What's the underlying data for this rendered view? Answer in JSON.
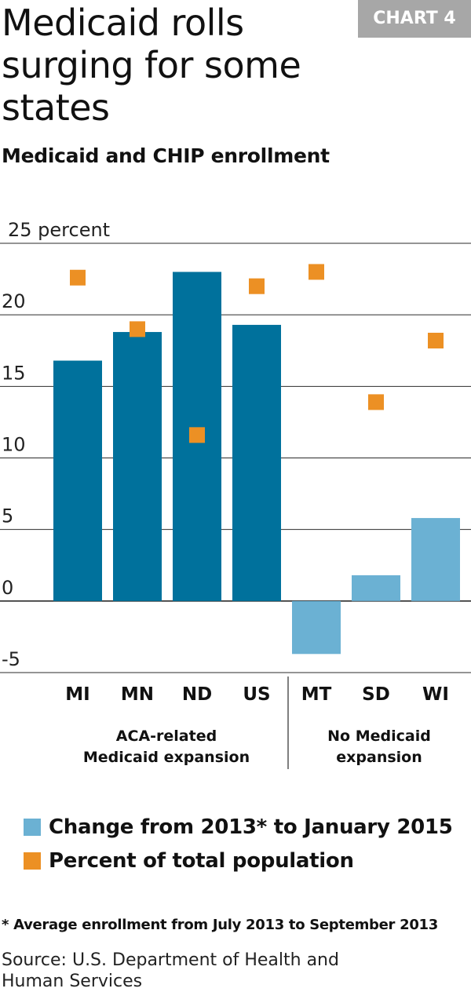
{
  "header": {
    "title": "Medicaid rolls surging for some states",
    "badge": "CHART 4",
    "subtitle": "Medicaid and CHIP enrollment"
  },
  "colors": {
    "expansion_bar": "#00719c",
    "no_expansion_bar": "#6bb1d3",
    "marker": "#ec9024",
    "grid": "#2b2b2b",
    "badge_bg": "#a7a7a7"
  },
  "chart_data": {
    "type": "bar",
    "title": "Medicaid and CHIP enrollment",
    "ylabel": "percent",
    "ylim": [
      -5,
      25
    ],
    "yticks": [
      {
        "value": 25,
        "label": "25 percent"
      },
      {
        "value": 20,
        "label": "20"
      },
      {
        "value": 15,
        "label": "15"
      },
      {
        "value": 10,
        "label": "10"
      },
      {
        "value": 5,
        "label": "5"
      },
      {
        "value": 0,
        "label": "0"
      },
      {
        "value": -5,
        "label": "-5"
      }
    ],
    "grid": true,
    "categories": [
      "MI",
      "MN",
      "ND",
      "US",
      "MT",
      "SD",
      "WI"
    ],
    "groups": [
      {
        "label_lines": [
          "ACA-related",
          "Medicaid expansion"
        ],
        "categories": [
          "MI",
          "MN",
          "ND",
          "US"
        ]
      },
      {
        "label_lines": [
          "No Medicaid",
          "expansion"
        ],
        "categories": [
          "MT",
          "SD",
          "WI"
        ]
      }
    ],
    "series": [
      {
        "name": "Change from 2013* to January 2015",
        "kind": "bar",
        "values": [
          16.8,
          18.8,
          23.0,
          19.3,
          -3.7,
          1.8,
          5.8
        ]
      },
      {
        "name": "Percent of total population",
        "kind": "marker",
        "values": [
          22.6,
          19.0,
          11.6,
          22.0,
          23.0,
          13.9,
          18.2
        ]
      }
    ]
  },
  "legend": {
    "items": [
      {
        "label": "Change from 2013* to January 2015",
        "color": "#6bb1d3"
      },
      {
        "label": "Percent of total population",
        "color": "#ec9024"
      }
    ]
  },
  "footnote": "*  Average enrollment from July 2013 to September 2013",
  "source": "Source: U.S. Department of Health and Human Services"
}
